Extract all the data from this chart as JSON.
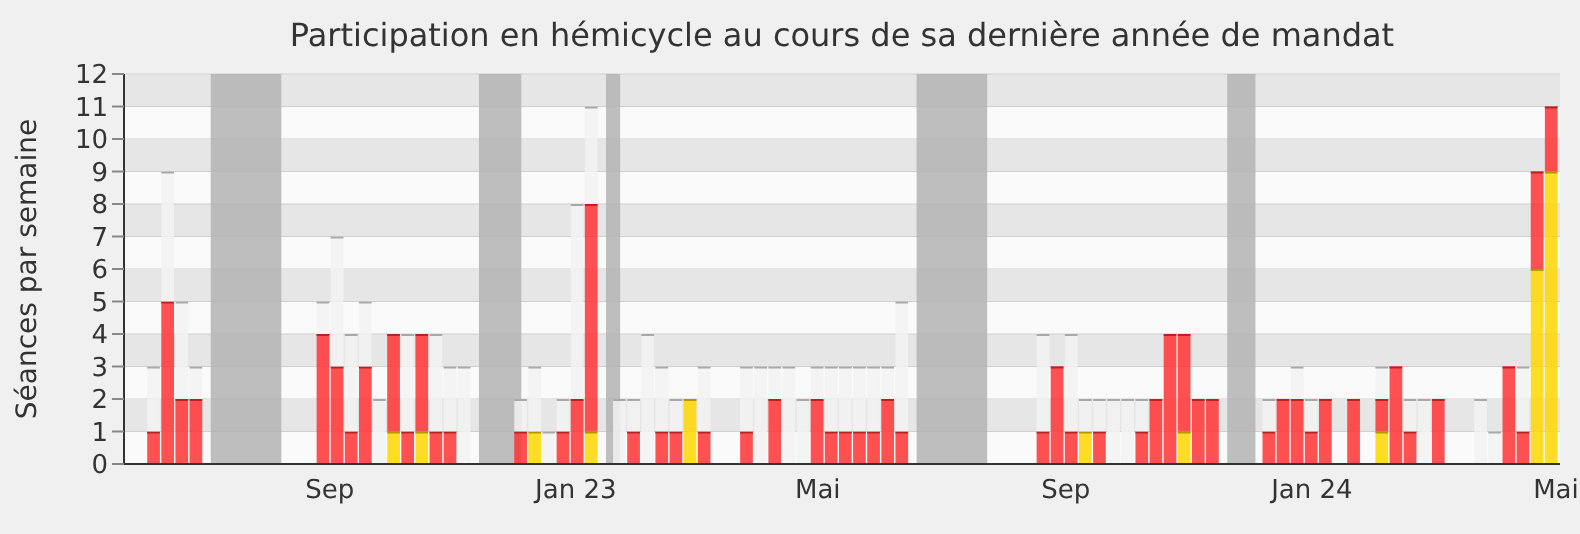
{
  "chart_data": {
    "type": "bar",
    "stacked": true,
    "title": "Participation en hémicycle au cours de sa dernière année de mandat",
    "ylabel": "Séances par semaine",
    "x": [
      "2022-06-06",
      "2022-06-13",
      "2022-06-20",
      "2022-06-27",
      "2022-07-04",
      "2022-07-11",
      "2022-07-18",
      "2022-07-25",
      "2022-08-01",
      "2022-08-08",
      "2022-08-15",
      "2022-08-22",
      "2022-08-29",
      "2022-09-05",
      "2022-09-12",
      "2022-09-19",
      "2022-09-26",
      "2022-10-03",
      "2022-10-10",
      "2022-10-17",
      "2022-10-24",
      "2022-10-31",
      "2022-11-07",
      "2022-11-14",
      "2022-11-21",
      "2022-11-28",
      "2022-12-05",
      "2022-12-12",
      "2022-12-19",
      "2022-12-26",
      "2023-01-02",
      "2023-01-09",
      "2023-01-16",
      "2023-01-23",
      "2023-01-30",
      "2023-02-06",
      "2023-02-13",
      "2023-02-20",
      "2023-02-27",
      "2023-03-06",
      "2023-03-13",
      "2023-03-20",
      "2023-03-27",
      "2023-04-03",
      "2023-04-10",
      "2023-04-17",
      "2023-04-24",
      "2023-05-01",
      "2023-05-08",
      "2023-05-15",
      "2023-05-22",
      "2023-05-29",
      "2023-06-05",
      "2023-06-12",
      "2023-06-19",
      "2023-06-26",
      "2023-07-03",
      "2023-07-10",
      "2023-07-17",
      "2023-07-24",
      "2023-07-31",
      "2023-08-07",
      "2023-08-14",
      "2023-08-21",
      "2023-08-28",
      "2023-09-04",
      "2023-09-11",
      "2023-09-18",
      "2023-09-25",
      "2023-10-02",
      "2023-10-09",
      "2023-10-16",
      "2023-10-23",
      "2023-10-30",
      "2023-11-06",
      "2023-11-13",
      "2023-11-20",
      "2023-11-27",
      "2023-12-04",
      "2023-12-11",
      "2023-12-18",
      "2023-12-25",
      "2024-01-01",
      "2024-01-08",
      "2024-01-15",
      "2024-01-22",
      "2024-01-29",
      "2024-02-05",
      "2024-02-12",
      "2024-02-19",
      "2024-02-26",
      "2024-03-04",
      "2024-03-11",
      "2024-03-18",
      "2024-03-25",
      "2024-04-01",
      "2024-04-08",
      "2024-04-15",
      "2024-04-22",
      "2024-04-29"
    ],
    "series": [
      {
        "color": "#ffd700",
        "values": [
          0,
          0,
          0,
          0,
          0,
          0,
          0,
          0,
          0,
          0,
          0,
          0,
          0,
          0,
          0,
          0,
          0,
          1,
          0,
          1,
          0,
          0,
          0,
          0,
          0,
          0,
          0,
          1,
          0,
          0,
          0,
          1,
          0,
          0,
          0,
          0,
          0,
          0,
          2,
          0,
          0,
          0,
          0,
          0,
          0,
          0,
          0,
          0,
          0,
          0,
          0,
          0,
          0,
          0,
          0,
          0,
          0,
          0,
          0,
          0,
          0,
          0,
          0,
          0,
          0,
          0,
          1,
          0,
          0,
          0,
          0,
          0,
          0,
          1,
          0,
          0,
          0,
          0,
          0,
          0,
          0,
          0,
          0,
          0,
          0,
          0,
          0,
          1,
          0,
          0,
          0,
          0,
          0,
          0,
          0,
          0,
          0,
          0,
          6,
          9
        ]
      },
      {
        "color": "#ff3333",
        "values": [
          1,
          5,
          2,
          2,
          0,
          0,
          0,
          0,
          0,
          0,
          0,
          0,
          4,
          3,
          1,
          3,
          0,
          3,
          1,
          3,
          1,
          1,
          0,
          0,
          0,
          0,
          1,
          0,
          0,
          1,
          2,
          7,
          0,
          0,
          1,
          0,
          1,
          1,
          0,
          1,
          0,
          0,
          1,
          0,
          2,
          0,
          0,
          2,
          1,
          1,
          1,
          1,
          2,
          1,
          0,
          0,
          0,
          0,
          0,
          0,
          0,
          0,
          0,
          1,
          3,
          1,
          0,
          1,
          0,
          0,
          1,
          2,
          4,
          3,
          2,
          2,
          0,
          0,
          0,
          1,
          2,
          2,
          1,
          2,
          0,
          2,
          0,
          1,
          3,
          1,
          0,
          2,
          0,
          0,
          0,
          0,
          3,
          1,
          3,
          2
        ]
      },
      {
        "color": "#f2f2f2",
        "values": [
          2,
          4,
          3,
          1,
          0,
          0,
          0,
          0,
          0,
          0,
          0,
          0,
          1,
          4,
          3,
          2,
          2,
          0,
          3,
          0,
          3,
          2,
          3,
          0,
          0,
          0,
          1,
          2,
          1,
          1,
          6,
          3,
          0,
          2,
          1,
          4,
          2,
          1,
          0,
          2,
          0,
          0,
          2,
          3,
          1,
          3,
          2,
          1,
          2,
          2,
          2,
          2,
          1,
          4,
          0,
          0,
          0,
          0,
          0,
          0,
          0,
          0,
          0,
          3,
          0,
          3,
          1,
          1,
          2,
          2,
          1,
          0,
          0,
          0,
          0,
          0,
          0,
          0,
          0,
          1,
          0,
          1,
          1,
          0,
          0,
          0,
          0,
          1,
          0,
          1,
          2,
          0,
          0,
          0,
          2,
          1,
          0,
          2,
          0,
          0
        ]
      }
    ],
    "bands": [
      {
        "axis": "x",
        "from": "2022-07-04",
        "to": "2022-08-08",
        "color": "#b3b3b3"
      },
      {
        "axis": "x",
        "from": "2022-11-14",
        "to": "2022-12-05",
        "color": "#b3b3b3"
      },
      {
        "axis": "x",
        "from": "2023-01-16",
        "to": "2023-01-23",
        "color": "#b3b3b3"
      },
      {
        "axis": "x",
        "from": "2023-06-19",
        "to": "2023-07-24",
        "color": "#b3b3b3"
      },
      {
        "axis": "x",
        "from": "2023-11-20",
        "to": "2023-12-04",
        "color": "#b3b3b3"
      }
    ],
    "xlim": [
      "2022-05-22",
      "2024-05-03"
    ],
    "xticks": [
      {
        "value": "2022-09-01",
        "label": "Sep"
      },
      {
        "value": "2023-01-01",
        "label": "Jan 23"
      },
      {
        "value": "2023-05-01",
        "label": "Mai"
      },
      {
        "value": "2023-09-01",
        "label": "Sep"
      },
      {
        "value": "2024-01-01",
        "label": "Jan 24"
      },
      {
        "value": "2024-05-01",
        "label": "Mai"
      }
    ],
    "ylim": [
      0,
      12
    ],
    "yticks": [
      0,
      1,
      2,
      3,
      4,
      5,
      6,
      7,
      8,
      9,
      10,
      11,
      12
    ],
    "grid": "y"
  }
}
